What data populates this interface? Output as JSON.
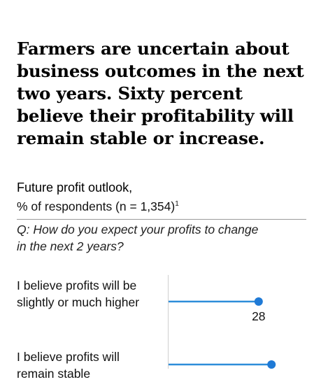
{
  "headline": "Farmers are uncertain about business outcomes in the next two years. Sixty percent believe their profitability will remain stable or increase.",
  "chart_data": {
    "type": "dot",
    "title": "Future profit outlook,",
    "subtitle": "% of respondents (n = 1,354)",
    "subtitle_footnote": "1",
    "question": "Q: How do you expect your profits to change in the next 2 years?",
    "categories": [
      "I believe profits will be slightly or much higher",
      "I believe profits will remain stable"
    ],
    "values": [
      28,
      32
    ],
    "value_labels": [
      "28",
      ""
    ],
    "xlim": [
      0,
      35
    ],
    "grid": false,
    "colors": {
      "line": "#2e8dd9",
      "dot": "#1f7ad6"
    }
  }
}
